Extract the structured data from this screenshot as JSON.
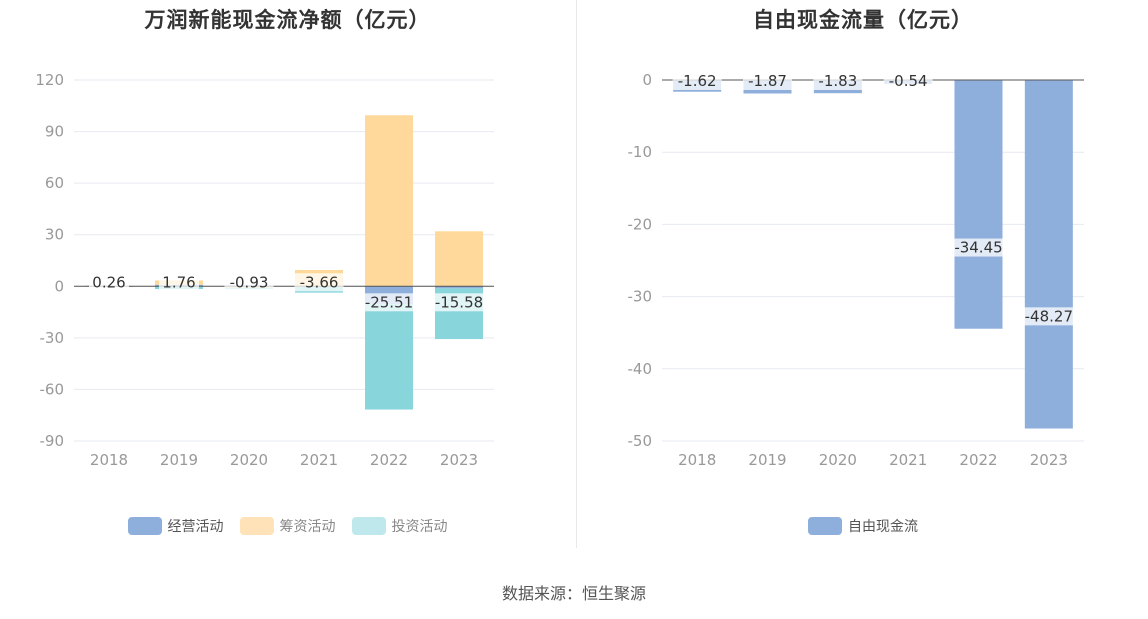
{
  "colors": {
    "operating": "#8eaedc",
    "financing": "#ffd99b",
    "investing": "#88d6dc",
    "free_cash_flow": "#8eaedc",
    "grid": "#e6e9f0",
    "zero_line": "#555555",
    "tick_text": "#999999"
  },
  "source": "数据来源：恒生聚源",
  "chart_data": [
    {
      "type": "bar",
      "stacked": true,
      "title": "万润新能现金流净额（亿元）",
      "categories": [
        "2018",
        "2019",
        "2020",
        "2021",
        "2022",
        "2023"
      ],
      "ylim": [
        -90,
        120
      ],
      "yticks": [
        120,
        90,
        60,
        30,
        0,
        -30,
        -60,
        -90
      ],
      "grid": true,
      "legend_position": "bottom",
      "series": [
        {
          "name": "经营活动",
          "values": [
            0.1,
            0.9,
            0.6,
            -0.4,
            -10.5,
            -1.2
          ]
        },
        {
          "name": "筹资活动",
          "values": [
            0.2,
            2.5,
            -0.8,
            9.5,
            99.5,
            32.0
          ]
        },
        {
          "name": "投资活动",
          "values": [
            -0.04,
            -1.6,
            -0.7,
            -3.3,
            -61.2,
            -29.5
          ]
        }
      ],
      "data_labels": [
        "0.26",
        "1.76",
        "-0.93",
        "-3.66",
        "-25.51",
        "-15.58"
      ]
    },
    {
      "type": "bar",
      "title": "自由现金流量（亿元）",
      "categories": [
        "2018",
        "2019",
        "2020",
        "2021",
        "2022",
        "2023"
      ],
      "ylim": [
        -50,
        0
      ],
      "yticks": [
        0,
        -10,
        -20,
        -30,
        -40,
        -50
      ],
      "grid": true,
      "legend_position": "bottom",
      "series": [
        {
          "name": "自由现金流",
          "values": [
            -1.62,
            -1.87,
            -1.83,
            -0.54,
            -34.45,
            -48.27
          ]
        }
      ],
      "data_labels": [
        "-1.62",
        "-1.87",
        "-1.83",
        "-0.54",
        "-34.45",
        "-48.27"
      ]
    }
  ]
}
